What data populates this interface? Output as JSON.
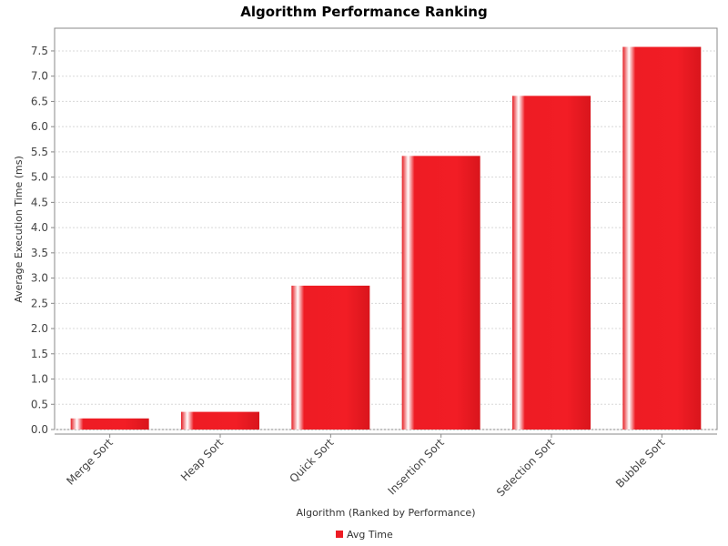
{
  "chart_data": {
    "type": "bar",
    "title": "Algorithm Performance Ranking",
    "xlabel": "Algorithm (Ranked by Performance)",
    "ylabel": "Average Execution Time (ms)",
    "categories": [
      "Merge Sort",
      "Heap Sort",
      "Quick Sort",
      "Insertion Sort",
      "Selection Sort",
      "Bubble Sort"
    ],
    "series": [
      {
        "name": "Avg Time",
        "values": [
          0.22,
          0.35,
          2.85,
          5.42,
          6.61,
          7.58
        ]
      }
    ],
    "ylim": [
      0,
      7.95
    ],
    "yticks": [
      "0.0",
      "0.5",
      "1.0",
      "1.5",
      "2.0",
      "2.5",
      "3.0",
      "3.5",
      "4.0",
      "4.5",
      "5.0",
      "5.5",
      "6.0",
      "6.5",
      "7.0",
      "7.5"
    ],
    "grid": true,
    "legend_position": "bottom",
    "colors": {
      "bar": "#ed1c24",
      "bar_highlight": "#ffffff",
      "grid": "#d8d8d8",
      "plot_border": "#888888"
    }
  }
}
